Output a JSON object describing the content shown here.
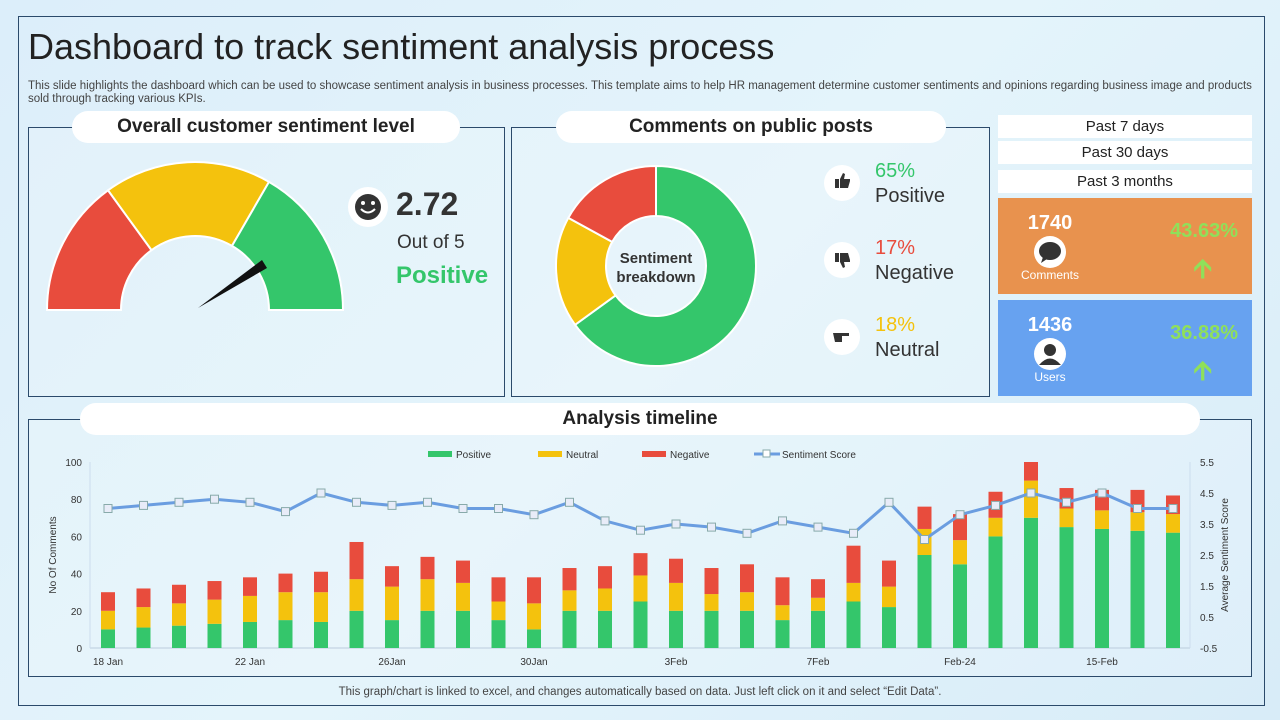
{
  "title": "Dashboard to track sentiment analysis process",
  "description": "This slide highlights the dashboard which can be used to showcase sentiment analysis in business processes. This template aims to help HR management determine customer sentiments and opinions regarding business image and products sold through tracking various KPIs.",
  "gauge": {
    "heading": "Overall customer sentiment level",
    "score": "2.72",
    "out_of": "Out of 5",
    "label": "Positive",
    "icon": "smiley-face-icon",
    "colors": {
      "red": "#e84c3d",
      "yellow": "#f4c20d",
      "green": "#34c66b"
    }
  },
  "comments": {
    "heading": "Comments on public posts",
    "center_label_1": "Sentiment",
    "center_label_2": "breakdown",
    "items": [
      {
        "pct": "65%",
        "label": "Positive",
        "value": 65,
        "color": "#34c66b",
        "icon": "thumbs-up-icon"
      },
      {
        "pct": "17%",
        "label": "Negative",
        "value": 17,
        "color": "#e84c3d",
        "icon": "thumbs-down-icon"
      },
      {
        "pct": "18%",
        "label": "Neutral",
        "value": 18,
        "color": "#f4c20d",
        "icon": "pointing-hand-icon"
      }
    ]
  },
  "periods": [
    "Past 7 days",
    "Past 30 days",
    "Past 3 months"
  ],
  "kpis": [
    {
      "value": "1740",
      "label": "Comments",
      "change": "43.63%",
      "color": "#e8924e",
      "icon": "speech-bubble-icon"
    },
    {
      "value": "1436",
      "label": "Users",
      "change": "36.88%",
      "color": "#67a2f0",
      "icon": "user-icon"
    }
  ],
  "timeline": {
    "heading": "Analysis timeline"
  },
  "footer": "This graph/chart is linked to excel,  and changes automatically based on data. Just left click on it and select “Edit Data”.",
  "chart_data": {
    "type": "bar",
    "stacked": true,
    "ylabel": "No Of Comments",
    "y2label": "Average Sentiment Score",
    "ylim": [
      0,
      100
    ],
    "yticks": [
      0,
      20,
      40,
      60,
      80,
      100
    ],
    "y2lim": [
      -0.5,
      5.5
    ],
    "y2ticks": [
      -0.5,
      0.5,
      1.5,
      2.5,
      3.5,
      4.5,
      5.5
    ],
    "x_tick_labels": {
      "0": "18 Jan",
      "4": "22 Jan",
      "8": "26Jan",
      "12": "30Jan",
      "16": "3Feb",
      "20": "7Feb",
      "24": "Feb-24",
      "28": "15-Feb"
    },
    "legend_position": "top",
    "series": [
      {
        "name": "Positive",
        "color": "#34c66b",
        "values": [
          10,
          11,
          12,
          13,
          14,
          15,
          14,
          20,
          15,
          20,
          20,
          15,
          10,
          20,
          20,
          25,
          20,
          20,
          20,
          15,
          20,
          25,
          22,
          50,
          45,
          60,
          70,
          65,
          64,
          63,
          62
        ]
      },
      {
        "name": "Neutral",
        "color": "#f4c20d",
        "values": [
          10,
          11,
          12,
          13,
          14,
          15,
          16,
          17,
          18,
          17,
          15,
          10,
          14,
          11,
          12,
          14,
          15,
          9,
          10,
          8,
          7,
          10,
          11,
          14,
          13,
          10,
          20,
          10,
          10,
          10,
          10
        ]
      },
      {
        "name": "Negative",
        "color": "#e84c3d",
        "values": [
          10,
          10,
          10,
          10,
          10,
          10,
          11,
          20,
          11,
          12,
          12,
          13,
          14,
          12,
          12,
          12,
          13,
          14,
          15,
          15,
          10,
          20,
          14,
          12,
          14,
          14,
          10,
          11,
          11,
          12,
          10
        ]
      },
      {
        "name": "Sentiment Score",
        "type": "line",
        "axis": "right",
        "color": "#6a9de0",
        "values": [
          4.0,
          4.1,
          4.2,
          4.3,
          4.2,
          3.9,
          4.5,
          4.2,
          4.1,
          4.2,
          4.0,
          4.0,
          3.8,
          4.2,
          3.6,
          3.3,
          3.5,
          3.4,
          3.2,
          3.6,
          3.4,
          3.2,
          4.2,
          3.0,
          3.8,
          4.1,
          4.5,
          4.2,
          4.5,
          4.0,
          4.0
        ]
      }
    ]
  }
}
